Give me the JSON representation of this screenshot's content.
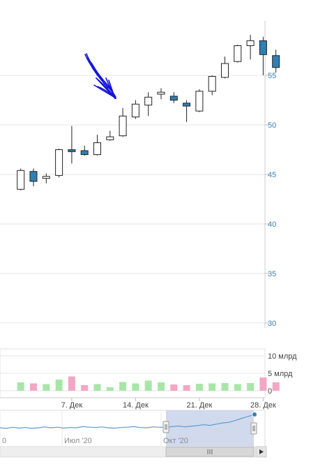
{
  "chart_data": [
    {
      "type": "candlestick",
      "title": "",
      "price_axis": {
        "ticks": [
          30,
          35,
          40,
          45,
          50,
          55
        ],
        "range": [
          29.5,
          60.5
        ]
      },
      "x_ticks": [
        {
          "label": "7. Дек",
          "index": 4
        },
        {
          "label": "14. Дек",
          "index": 9
        },
        {
          "label": "21. Дек",
          "index": 14
        },
        {
          "label": "28. Дек",
          "index": 19
        }
      ],
      "colors": {
        "up": "#ffffff",
        "down": "#2f7fb5",
        "wick": "#222222",
        "grid": "#e6e6e6"
      },
      "candles": [
        {
          "o": 43.5,
          "h": 45.6,
          "l": 43.4,
          "c": 45.4
        },
        {
          "o": 45.3,
          "h": 45.6,
          "l": 43.8,
          "c": 44.3
        },
        {
          "o": 44.6,
          "h": 45.1,
          "l": 44.1,
          "c": 44.8
        },
        {
          "o": 44.9,
          "h": 47.6,
          "l": 44.7,
          "c": 47.5
        },
        {
          "o": 47.5,
          "h": 49.9,
          "l": 46.1,
          "c": 47.3
        },
        {
          "o": 47.4,
          "h": 47.9,
          "l": 46.9,
          "c": 47.0
        },
        {
          "o": 47.0,
          "h": 49.0,
          "l": 46.9,
          "c": 48.2
        },
        {
          "o": 48.5,
          "h": 49.4,
          "l": 48.4,
          "c": 48.8
        },
        {
          "o": 48.9,
          "h": 51.7,
          "l": 48.8,
          "c": 50.9
        },
        {
          "o": 50.8,
          "h": 52.5,
          "l": 50.6,
          "c": 52.1
        },
        {
          "o": 52.0,
          "h": 53.3,
          "l": 50.9,
          "c": 52.8
        },
        {
          "o": 53.1,
          "h": 53.7,
          "l": 52.6,
          "c": 53.3
        },
        {
          "o": 52.9,
          "h": 53.3,
          "l": 52.2,
          "c": 52.5
        },
        {
          "o": 52.2,
          "h": 52.5,
          "l": 50.3,
          "c": 51.9
        },
        {
          "o": 51.4,
          "h": 53.6,
          "l": 51.3,
          "c": 53.4
        },
        {
          "o": 53.4,
          "h": 55.0,
          "l": 53.0,
          "c": 54.9
        },
        {
          "o": 54.8,
          "h": 56.9,
          "l": 54.7,
          "c": 56.2
        },
        {
          "o": 56.4,
          "h": 58.1,
          "l": 56.3,
          "c": 58.0
        },
        {
          "o": 58.0,
          "h": 59.1,
          "l": 56.6,
          "c": 58.5
        },
        {
          "o": 58.5,
          "h": 58.9,
          "l": 55.0,
          "c": 57.1
        },
        {
          "o": 57.0,
          "h": 57.6,
          "l": 55.3,
          "c": 55.8
        }
      ]
    },
    {
      "type": "bar",
      "title": "",
      "value_axis": {
        "ticks": [
          0,
          5,
          10
        ],
        "tick_labels": [
          "0",
          "5 млрд",
          "10 млрд"
        ],
        "range": [
          0,
          12
        ]
      },
      "values": [
        2.4,
        2.1,
        1.9,
        3.2,
        4.1,
        1.6,
        1.9,
        1.0,
        2.5,
        2.1,
        2.9,
        2.4,
        1.8,
        1.6,
        2.0,
        2.1,
        2.2,
        1.9,
        2.2,
        3.8,
        2.4
      ],
      "up_color": "#a8e6a8",
      "down_color": "#f4a6c4"
    },
    {
      "type": "area",
      "title": "",
      "x_tick_labels": [
        "0",
        "Июл '20",
        "Окт '20"
      ],
      "values": [
        5.2,
        5.0,
        5.4,
        5.1,
        5.3,
        5.0,
        5.2,
        5.5,
        5.2,
        5.4,
        5.1,
        5.3,
        5.2,
        5.6,
        5.4,
        5.3,
        5.5,
        5.2,
        5.1,
        5.3,
        5.4,
        5.6,
        5.3,
        5.2,
        5.5,
        5.4,
        5.3,
        5.6,
        5.8,
        5.5,
        5.7,
        5.9,
        6.2,
        6.0,
        6.4,
        6.8,
        7.0,
        7.6,
        8.3,
        8.9,
        9.6
      ],
      "line_color": "#5b9bd5"
    }
  ]
}
